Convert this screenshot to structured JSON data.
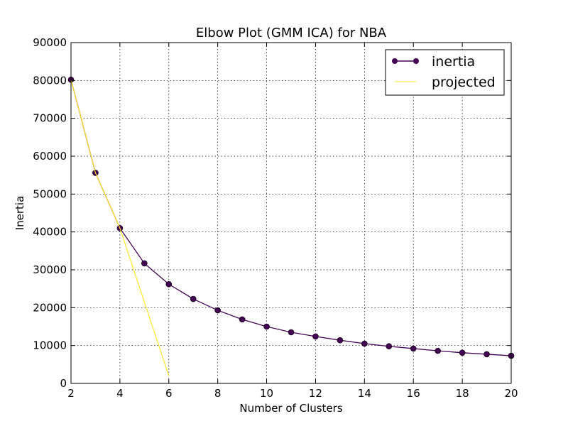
{
  "chart_data": {
    "type": "line",
    "title": "Elbow Plot (GMM ICA) for NBA",
    "xlabel": "Number of Clusters",
    "ylabel": "Inertia",
    "xlim": [
      2,
      20
    ],
    "ylim": [
      0,
      90000
    ],
    "xticks": [
      2,
      4,
      6,
      8,
      10,
      12,
      14,
      16,
      18,
      20
    ],
    "yticks": [
      0,
      10000,
      20000,
      30000,
      40000,
      50000,
      60000,
      70000,
      80000,
      90000
    ],
    "grid": true,
    "legend_position": "top-right",
    "series": [
      {
        "name": "inertia",
        "color": "#440154",
        "marker": "circle",
        "x": [
          2,
          3,
          4,
          5,
          6,
          7,
          8,
          9,
          10,
          11,
          12,
          13,
          14,
          15,
          16,
          17,
          18,
          19,
          20
        ],
        "y": [
          80200,
          55600,
          41000,
          31700,
          26200,
          22300,
          19300,
          16900,
          15000,
          13500,
          12400,
          11400,
          10500,
          9800,
          9200,
          8600,
          8100,
          7700,
          7300
        ]
      },
      {
        "name": "projected",
        "color": "#fde725",
        "marker": "none",
        "x": [
          2,
          3,
          4,
          5,
          6
        ],
        "y": [
          80200,
          55600,
          41000,
          21500,
          2000
        ]
      }
    ]
  }
}
